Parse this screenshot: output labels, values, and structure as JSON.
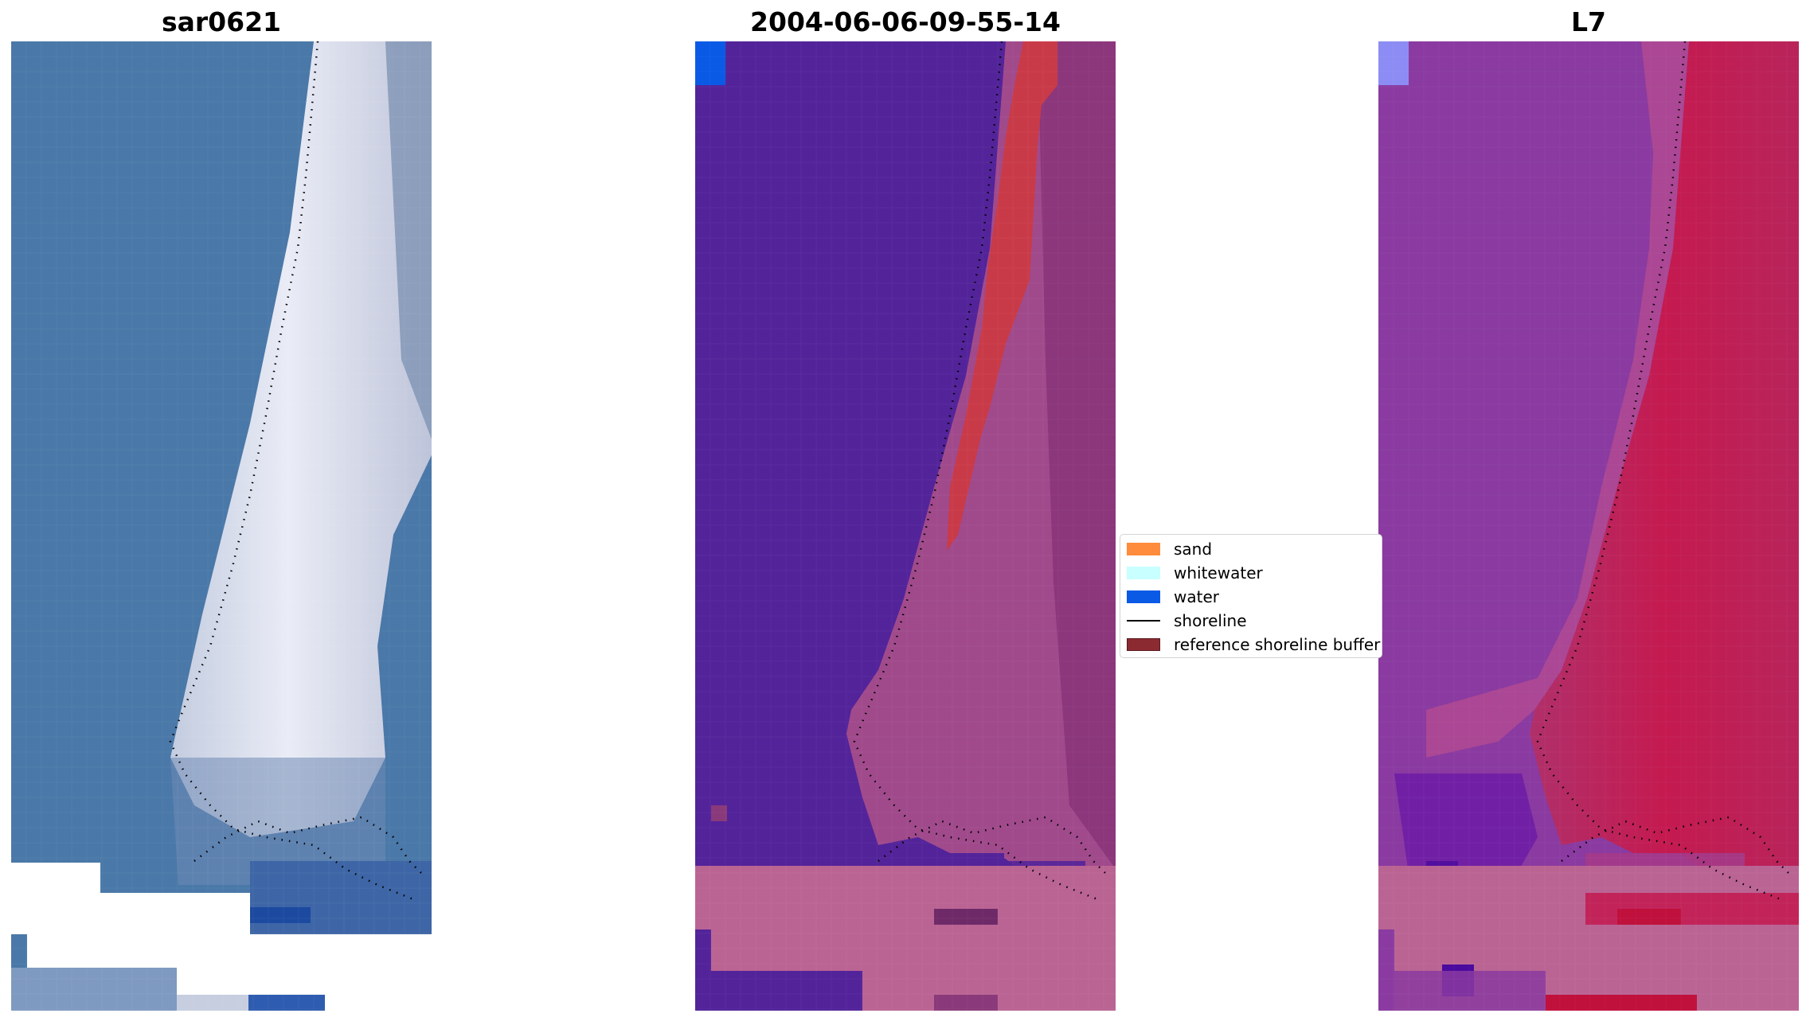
{
  "panels": [
    {
      "id": "rgb",
      "title": "sar0621"
    },
    {
      "id": "classified",
      "title": "2004-06-06-09-55-14"
    },
    {
      "id": "index",
      "title": "L7"
    }
  ],
  "legend": {
    "items": [
      {
        "type": "patch",
        "label": "sand",
        "color": "#ff8c3c"
      },
      {
        "type": "patch",
        "label": "whitewater",
        "color": "#c8ffff"
      },
      {
        "type": "patch",
        "label": "water",
        "color": "#0a5ae6"
      },
      {
        "type": "line",
        "label": "shoreline",
        "color": "#000000"
      },
      {
        "type": "patch",
        "label": "reference shoreline buffer",
        "color": "#8c2a32"
      }
    ]
  },
  "colors": {
    "rgb_water": "#4a78a8",
    "rgb_sand": "#d8d8ea",
    "class_water": "#53239a",
    "class_land": "#a04a8c",
    "class_sand": "#c93a48",
    "index_water": "#8a3aa0",
    "index_land": "#c01a52",
    "buffer_band": "#ba6494"
  }
}
